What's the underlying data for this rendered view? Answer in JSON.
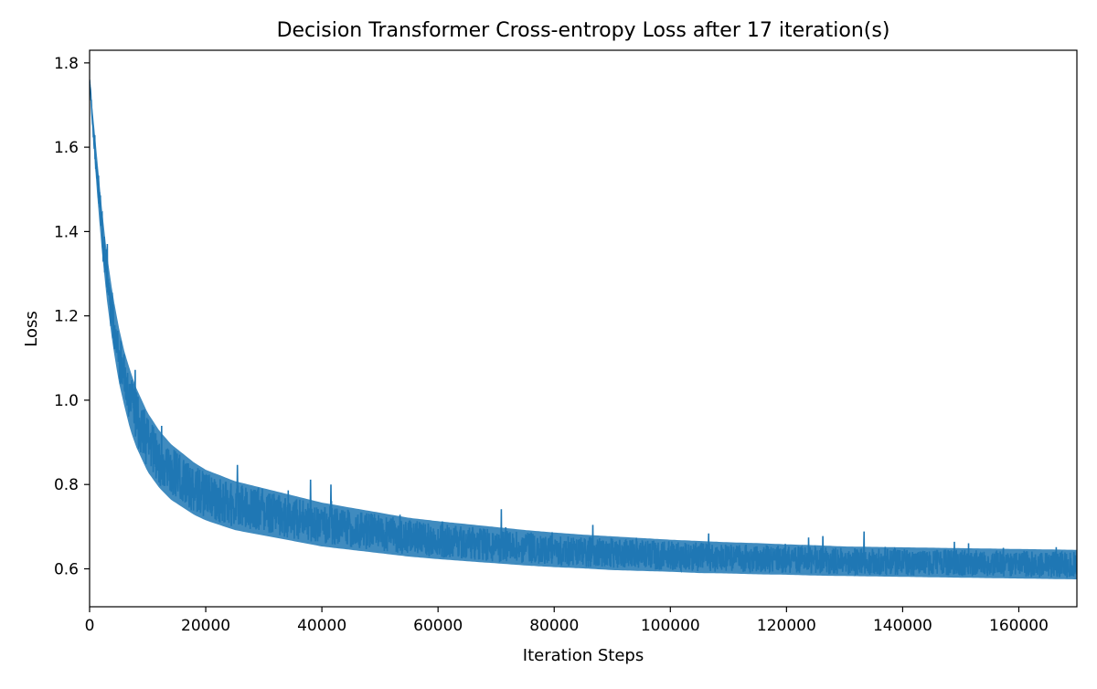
{
  "chart_data": {
    "type": "line",
    "title": "Decision Transformer Cross-entropy Loss after 17 iteration(s)",
    "xlabel": "Iteration Steps",
    "ylabel": "Loss",
    "xlim": [
      0,
      170000
    ],
    "ylim": [
      0.51,
      1.83
    ],
    "xticks": [
      0,
      20000,
      40000,
      60000,
      80000,
      100000,
      120000,
      140000,
      160000
    ],
    "xtick_labels": [
      "0",
      "20000",
      "40000",
      "60000",
      "80000",
      "100000",
      "120000",
      "140000",
      "160000"
    ],
    "yticks": [
      0.6,
      0.8,
      1.0,
      1.2,
      1.4,
      1.6,
      1.8
    ],
    "ytick_labels": [
      "0.6",
      "0.8",
      "1.0",
      "1.2",
      "1.4",
      "1.6",
      "1.8"
    ],
    "grid": false,
    "legend": "none",
    "series": [
      {
        "color": "#1f77b4",
        "x": [
          0,
          1000,
          2000,
          3000,
          4000,
          5000,
          6000,
          7000,
          8000,
          9000,
          10000,
          12000,
          14000,
          16000,
          18000,
          20000,
          25000,
          30000,
          35000,
          40000,
          45000,
          50000,
          55000,
          60000,
          65000,
          70000,
          75000,
          80000,
          85000,
          90000,
          95000,
          100000,
          105000,
          110000,
          115000,
          120000,
          125000,
          130000,
          135000,
          140000,
          145000,
          150000,
          155000,
          160000,
          165000,
          170000
        ],
        "y": [
          1.76,
          1.58,
          1.42,
          1.29,
          1.19,
          1.11,
          1.05,
          1.0,
          0.96,
          0.93,
          0.9,
          0.86,
          0.83,
          0.81,
          0.79,
          0.775,
          0.75,
          0.735,
          0.72,
          0.705,
          0.695,
          0.685,
          0.675,
          0.668,
          0.662,
          0.656,
          0.65,
          0.645,
          0.641,
          0.637,
          0.634,
          0.631,
          0.628,
          0.626,
          0.624,
          0.622,
          0.62,
          0.618,
          0.617,
          0.616,
          0.615,
          0.614,
          0.613,
          0.612,
          0.611,
          0.61
        ],
        "band_halfwidth": [
          0.0,
          0.04,
          0.05,
          0.055,
          0.06,
          0.065,
          0.065,
          0.07,
          0.07,
          0.07,
          0.07,
          0.068,
          0.066,
          0.064,
          0.062,
          0.06,
          0.058,
          0.056,
          0.054,
          0.052,
          0.05,
          0.048,
          0.046,
          0.045,
          0.044,
          0.043,
          0.042,
          0.041,
          0.04,
          0.04,
          0.039,
          0.038,
          0.038,
          0.037,
          0.037,
          0.036,
          0.036,
          0.035,
          0.035,
          0.035,
          0.035,
          0.035,
          0.035,
          0.035,
          0.035,
          0.035
        ]
      }
    ]
  }
}
